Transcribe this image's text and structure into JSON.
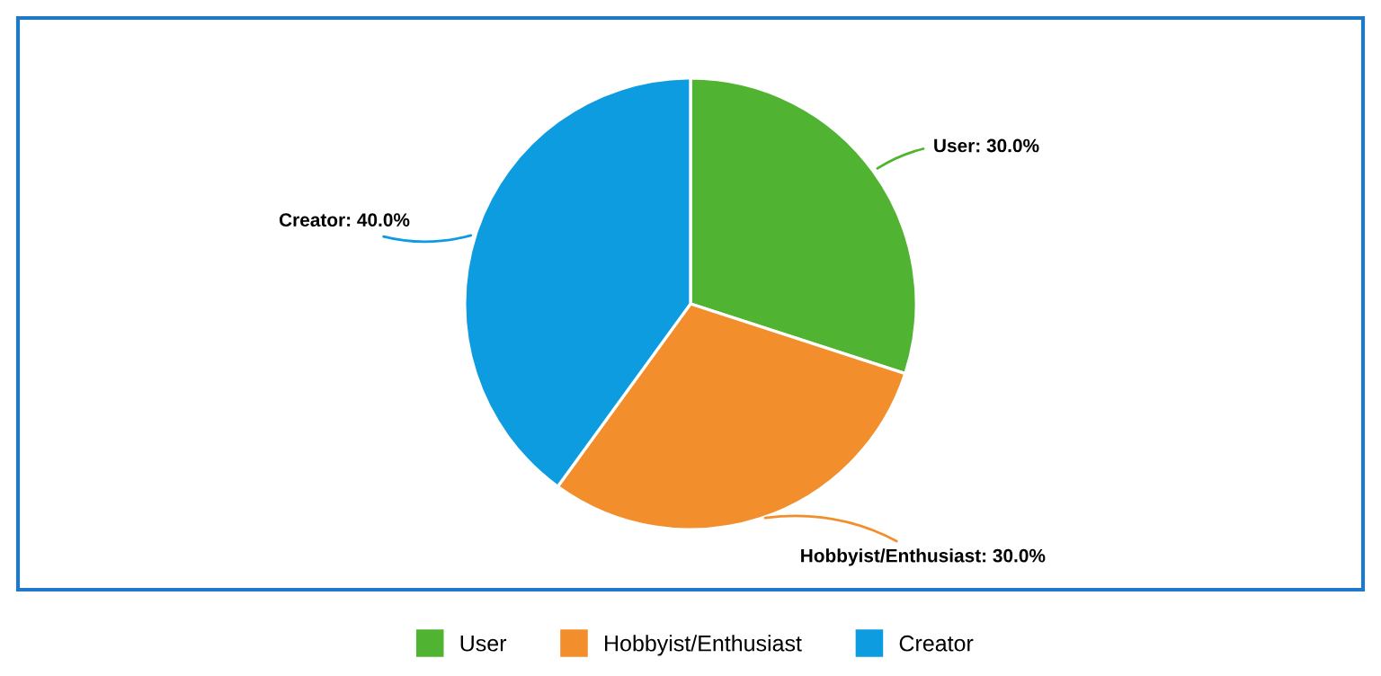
{
  "chart_data": {
    "type": "pie",
    "categories": [
      "User",
      "Hobbyist/Enthusiast",
      "Creator"
    ],
    "values": [
      30,
      30,
      40
    ],
    "colors": [
      "#50b432",
      "#f28f2c",
      "#0d9ce0"
    ],
    "value_labels": [
      "User: 30.0%",
      "Hobbyist/Enthusiast: 30.0%",
      "Creator: 40.0%"
    ],
    "legend": "bottom"
  }
}
